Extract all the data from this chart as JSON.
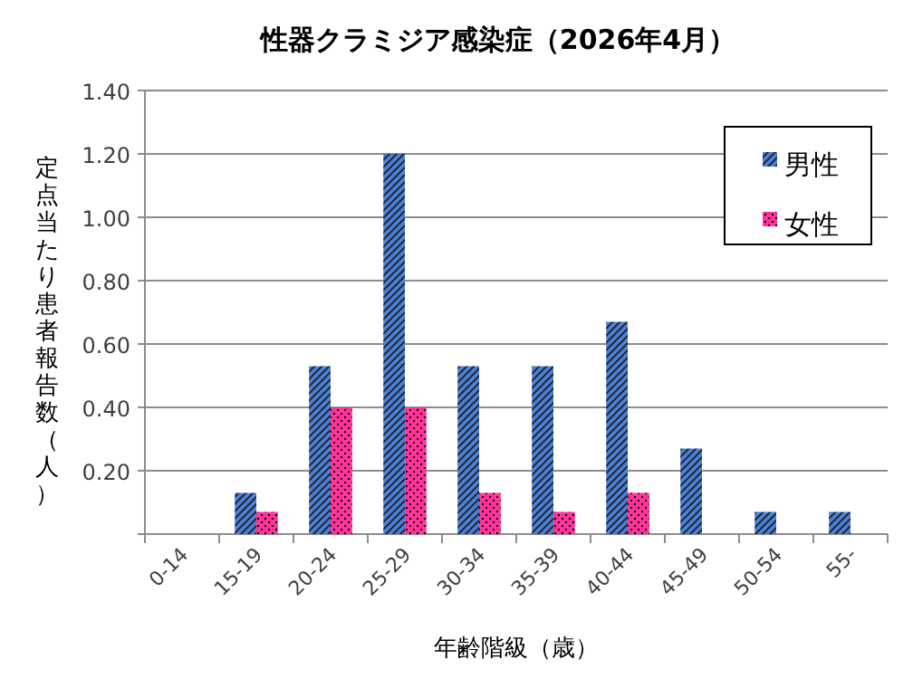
{
  "chart_data": {
    "type": "bar",
    "title": "性器クラミジア感染症（2026年4月）",
    "xlabel": "年齢階級（歳）",
    "ylabel": "定点当たり患者報告数（人）",
    "categories": [
      "0-14",
      "15-19",
      "20-24",
      "25-29",
      "30-34",
      "35-39",
      "40-44",
      "45-49",
      "50-54",
      "55-"
    ],
    "series": [
      {
        "name": "男性",
        "color": "#4a7fd6",
        "values": [
          0,
          0.13,
          0.53,
          1.2,
          0.53,
          0.53,
          0.67,
          0.27,
          0.07,
          0.07
        ]
      },
      {
        "name": "女性",
        "color": "#ff3399",
        "values": [
          0,
          0.07,
          0.4,
          0.4,
          0.13,
          0.07,
          0.13,
          0,
          0,
          0
        ]
      }
    ],
    "ylim": [
      0,
      1.4
    ],
    "yticks": [
      {
        "value": 0,
        "label": null
      },
      {
        "value": 0.2,
        "label": "0.20"
      },
      {
        "value": 0.4,
        "label": "0.40"
      },
      {
        "value": 0.6,
        "label": "0.60"
      },
      {
        "value": 0.8,
        "label": "0.80"
      },
      {
        "value": 1.0,
        "label": "1.00"
      },
      {
        "value": 1.2,
        "label": "1.20"
      },
      {
        "value": 1.4,
        "label": "1.40"
      }
    ],
    "grid": "y",
    "legend": "top right"
  }
}
